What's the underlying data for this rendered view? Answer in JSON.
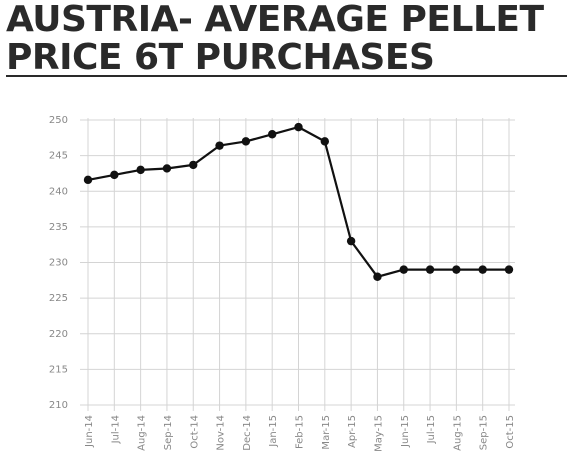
{
  "title": "AUSTRIA- AVERAGE PELLET\nPRICE 6T PURCHASES",
  "chart_data": {
    "type": "line",
    "title": "AUSTRIA- AVERAGE PELLET PRICE 6T PURCHASES",
    "xlabel": "",
    "ylabel": "",
    "categories": [
      "Jun-14",
      "Jul-14",
      "Aug-14",
      "Sep-14",
      "Oct-14",
      "Nov-14",
      "Dec-14",
      "Jan-15",
      "Feb-15",
      "Mar-15",
      "Apr-15",
      "May-15",
      "Jun-15",
      "Jul-15",
      "Aug-15",
      "Sep-15",
      "Oct-15"
    ],
    "series": [
      {
        "values": [
          241.6,
          242.3,
          243.0,
          243.2,
          243.7,
          246.4,
          247.0,
          248.0,
          249.0,
          247.0,
          233.0,
          228.0,
          229.0,
          229.0,
          229.0,
          229.0,
          229.0
        ]
      }
    ],
    "ylim": [
      210,
      250
    ],
    "yticks": [
      "250",
      "245",
      "240",
      "235",
      "230",
      "225",
      "220",
      "215",
      "210"
    ],
    "grid": true,
    "line_color": "#111111",
    "grid_color": "#d4d4d4"
  }
}
